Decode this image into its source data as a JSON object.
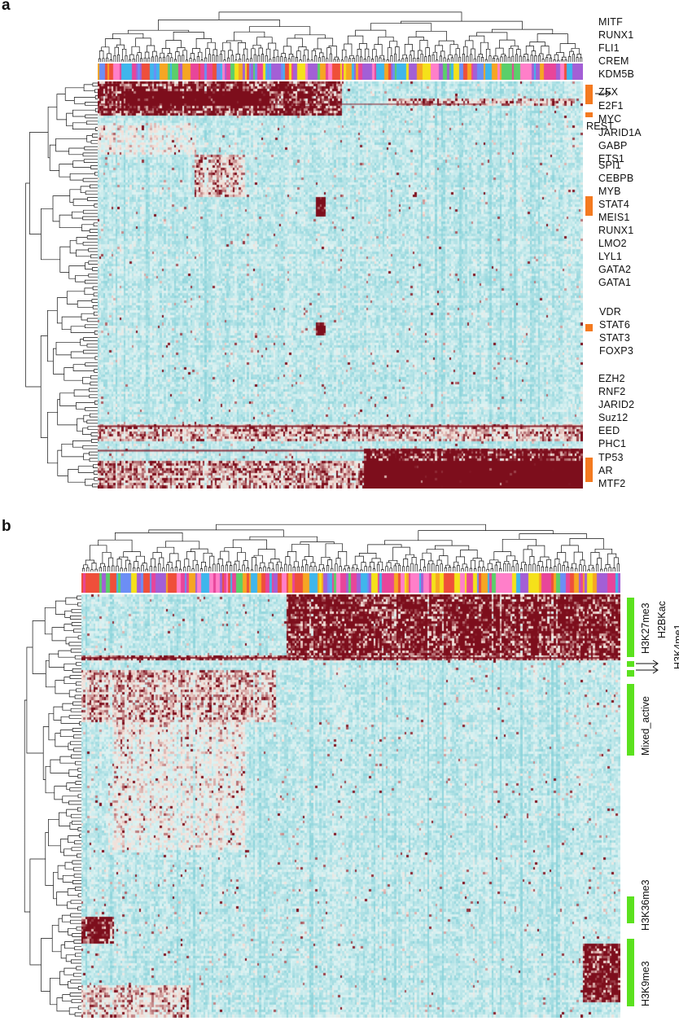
{
  "panels": [
    {
      "letter": "a",
      "marker_color": "#f47a20",
      "labels": [
        "MITF",
        "RUNX1",
        "FLI1",
        "CREM",
        "KDM5B",
        "ZFX",
        "E2F1",
        "MYC",
        "JARID1A",
        "GABP",
        "ETS1",
        "SPI1",
        "CEBPB",
        "MYB",
        "STAT4",
        "MEIS1",
        "RUNX1",
        "LMO2",
        "LYL1",
        "GATA2",
        "GATA1",
        "VDR",
        "STAT6",
        "STAT3",
        "FOXP3",
        "EZH2",
        "RNF2",
        "JARID2",
        "Suz12",
        "EED",
        "PHC1",
        "TP53",
        "AR",
        "MTF2"
      ],
      "side_label": "REST"
    },
    {
      "letter": "b",
      "marker_color": "#5be11e",
      "labels": [
        "H3K27me3",
        "H2BKac",
        "H3K4me1",
        "Mixed_active",
        "H3K36me3",
        "H3K9me3"
      ]
    }
  ],
  "heatmap_colors": {
    "background": "#ddf3f3",
    "low": "#8fd5dc",
    "mid": "#f6ded6",
    "high": "#7d0e1c"
  },
  "annotation_palette": [
    "#e8459a",
    "#f6a623",
    "#f5e11a",
    "#6c8ef5",
    "#3fb6ec",
    "#a35fd6",
    "#5bcf6a",
    "#ef4f3a",
    "#ff7fc9"
  ]
}
